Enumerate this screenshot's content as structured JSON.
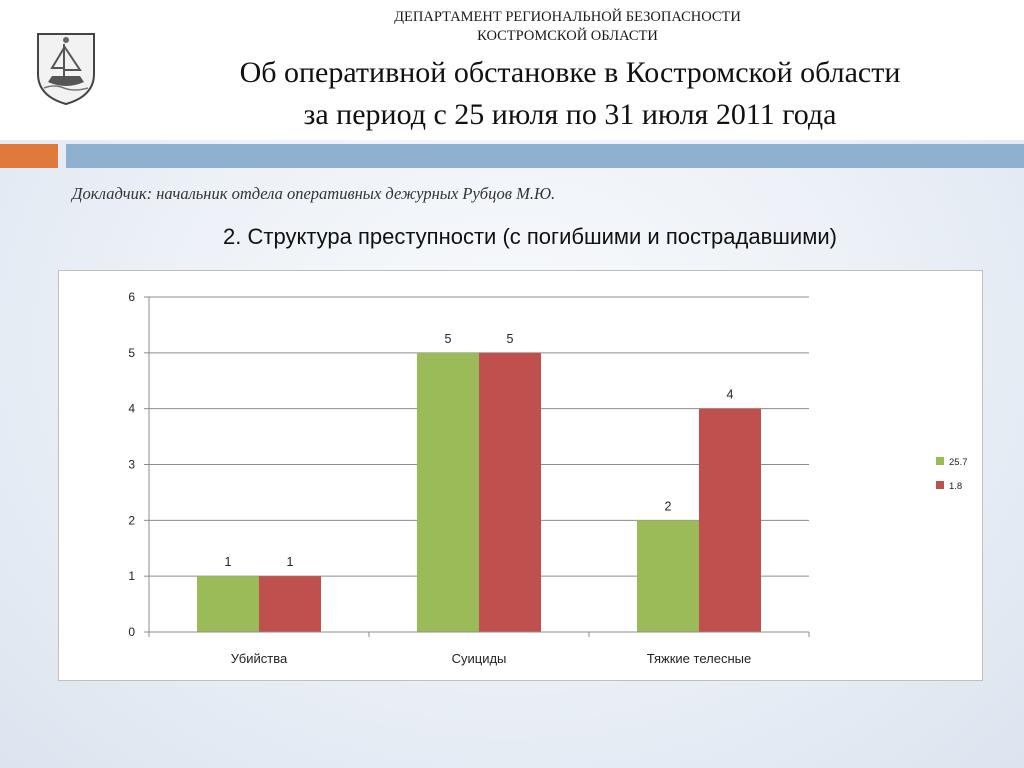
{
  "header": {
    "dept_line1": "ДЕПАРТАМЕНТ РЕГИОНАЛЬНОЙ БЕЗОПАСНОСТИ",
    "dept_line2": "КОСТРОМСКОЙ ОБЛАСТИ",
    "title_line1": "Об оперативной обстановке в Костромской области",
    "title_line2": "за период с 25 июля по 31 июля 2011 года"
  },
  "presenter": "Докладчик: начальник отдела оперативных дежурных Рубцов М.Ю.",
  "subtitle": "2. Структура преступности (с погибшими и пострадавшими)",
  "colors": {
    "series1": "#9bbb59",
    "series2": "#c0504d",
    "orange_bar": "#e07a3c",
    "blue_bar": "#8fb0cf"
  },
  "chart_data": {
    "type": "bar",
    "categories": [
      "Убийства",
      "Суициды",
      "Тяжкие телесные"
    ],
    "series": [
      {
        "name": "25.7",
        "values": [
          1,
          5,
          2
        ],
        "color": "#9bbb59"
      },
      {
        "name": "1.8",
        "values": [
          1,
          5,
          4
        ],
        "color": "#c0504d"
      }
    ],
    "ylim": [
      0,
      6
    ],
    "yticks": [
      0,
      1,
      2,
      3,
      4,
      5,
      6
    ],
    "grid": true,
    "legend_position": "right",
    "data_labels": true
  }
}
